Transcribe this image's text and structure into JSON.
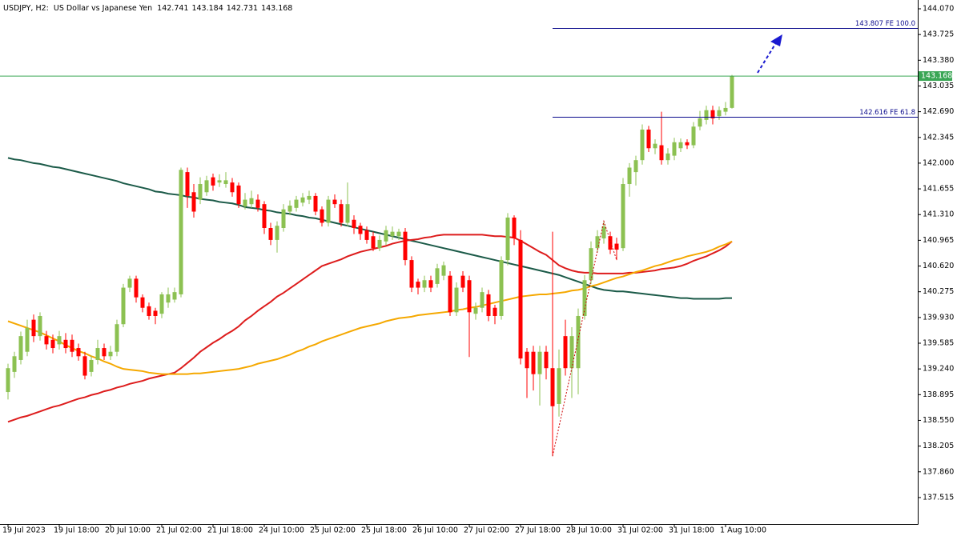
{
  "chart_data": {
    "type": "candlestick",
    "symbol": "USDJPY, H2:",
    "description": "US Dollar vs Japanese Yen",
    "up_color": "#8cc152",
    "down_color": "#ff0000",
    "price_line_color": "#3aa655",
    "level_color": "#0a0a8c",
    "categories": [
      "19 Jul 2023",
      null,
      null,
      null,
      null,
      null,
      null,
      null,
      "19 Jul 18:00",
      null,
      null,
      null,
      null,
      null,
      null,
      null,
      "20 Jul 10:00",
      null,
      null,
      null,
      null,
      null,
      null,
      null,
      "21 Jul 02:00",
      null,
      null,
      null,
      null,
      null,
      null,
      null,
      "21 Jul 18:00",
      null,
      null,
      null,
      null,
      null,
      null,
      null,
      "24 Jul 10:00",
      null,
      null,
      null,
      null,
      null,
      null,
      null,
      "25 Jul 02:00",
      null,
      null,
      null,
      null,
      null,
      null,
      null,
      "25 Jul 18:00",
      null,
      null,
      null,
      null,
      null,
      null,
      null,
      "26 Jul 10:00",
      null,
      null,
      null,
      null,
      null,
      null,
      null,
      "27 Jul 02:00",
      null,
      null,
      null,
      null,
      null,
      null,
      null,
      "27 Jul 18:00",
      null,
      null,
      null,
      null,
      null,
      null,
      null,
      "28 Jul 10:00",
      null,
      null,
      null,
      null,
      null,
      null,
      null,
      "31 Jul 02:00",
      null,
      null,
      null,
      null,
      null,
      null,
      null,
      "31 Jul 18:00",
      null,
      null,
      null,
      null,
      null,
      null,
      null,
      "1 Aug 10:00",
      null
    ],
    "open": [
      138.93,
      139.2,
      139.36,
      139.47,
      139.9,
      139.68,
      139.68,
      139.63,
      139.57,
      139.63,
      139.63,
      139.52,
      139.41,
      139.2,
      139.36,
      139.52,
      139.41,
      139.47,
      139.84,
      140.33,
      140.45,
      140.2,
      140.08,
      140.02,
      139.98,
      140.13,
      140.17,
      140.24,
      141.88,
      141.61,
      141.51,
      141.61,
      141.81,
      141.74,
      141.72,
      141.74,
      141.7,
      141.42,
      141.45,
      141.51,
      141.45,
      141.13,
      140.97,
      141.13,
      141.35,
      141.4,
      141.47,
      141.51,
      141.56,
      141.38,
      141.2,
      141.51,
      141.45,
      141.2,
      141.24,
      141.16,
      141.1,
      141.02,
      140.86,
      140.95,
      141.02,
      141.02,
      141.08,
      140.7,
      140.41,
      140.33,
      140.43,
      140.38,
      140.49,
      140.49,
      140.0,
      140.49,
      140.43,
      139.98,
      140.06,
      140.24,
      140.06,
      139.95,
      140.7,
      141.27,
      140.97,
      139.47,
      139.47,
      139.17,
      139.47,
      139.25,
      138.77,
      139.68,
      139.25,
      139.25,
      139.95,
      140.43,
      140.86,
      140.99,
      141.02,
      140.92,
      140.86,
      141.72,
      141.88,
      142.04,
      142.45,
      142.2,
      142.24,
      142.04,
      142.1,
      142.2,
      142.28,
      142.24,
      142.49,
      142.58,
      142.71,
      142.63,
      142.69,
      142.741
    ],
    "high": [
      139.31,
      139.47,
      139.74,
      139.9,
      139.97,
      140.0,
      139.75,
      139.7,
      139.75,
      139.72,
      139.7,
      139.58,
      139.47,
      139.42,
      139.63,
      139.58,
      139.55,
      139.9,
      140.38,
      140.49,
      140.49,
      140.24,
      140.13,
      140.06,
      140.27,
      140.33,
      140.33,
      141.94,
      141.94,
      141.72,
      141.81,
      141.83,
      141.86,
      141.85,
      141.88,
      141.8,
      141.74,
      141.6,
      141.63,
      141.58,
      141.49,
      141.2,
      141.22,
      141.45,
      141.5,
      141.56,
      141.6,
      141.63,
      141.6,
      141.42,
      141.56,
      141.58,
      141.51,
      141.74,
      141.3,
      141.2,
      141.15,
      141.08,
      141.03,
      141.16,
      141.15,
      141.12,
      141.13,
      140.75,
      140.45,
      140.49,
      140.49,
      140.65,
      140.68,
      140.55,
      140.4,
      140.55,
      140.49,
      140.13,
      140.33,
      140.3,
      140.1,
      140.75,
      141.33,
      141.3,
      141.1,
      139.52,
      139.55,
      139.55,
      139.55,
      141.08,
      139.5,
      139.9,
      139.8,
      140.05,
      140.5,
      140.95,
      141.1,
      141.22,
      141.08,
      141.0,
      141.8,
      142.0,
      142.1,
      142.52,
      142.5,
      142.32,
      142.69,
      142.2,
      142.34,
      142.33,
      142.32,
      142.55,
      142.7,
      142.77,
      142.77,
      142.76,
      142.82,
      143.184
    ],
    "low": [
      138.83,
      139.12,
      139.3,
      139.41,
      139.6,
      139.62,
      139.5,
      139.45,
      139.5,
      139.45,
      139.4,
      139.35,
      139.1,
      139.14,
      139.3,
      139.36,
      139.36,
      139.41,
      139.8,
      140.27,
      140.13,
      140.0,
      139.9,
      139.84,
      139.92,
      140.06,
      140.13,
      140.2,
      141.4,
      141.27,
      141.45,
      141.56,
      141.63,
      141.68,
      141.67,
      141.55,
      141.4,
      141.38,
      141.4,
      141.35,
      141.05,
      140.9,
      140.8,
      141.08,
      141.3,
      141.35,
      141.42,
      141.45,
      141.3,
      141.15,
      141.15,
      141.4,
      141.15,
      141.15,
      141.05,
      140.97,
      140.92,
      140.82,
      140.82,
      140.9,
      140.97,
      140.97,
      140.63,
      140.27,
      140.24,
      140.27,
      140.27,
      140.33,
      140.43,
      139.95,
      139.95,
      140.27,
      139.4,
      139.9,
      140.0,
      139.88,
      139.84,
      139.9,
      140.63,
      140.9,
      139.3,
      138.85,
      138.95,
      138.75,
      139.1,
      138.07,
      138.6,
      139.15,
      138.85,
      138.9,
      139.9,
      140.38,
      140.8,
      140.92,
      140.78,
      140.7,
      140.82,
      141.55,
      141.7,
      141.98,
      142.15,
      142.12,
      141.98,
      141.98,
      142.04,
      142.15,
      142.19,
      142.2,
      142.44,
      142.52,
      142.52,
      142.58,
      142.64,
      142.731
    ],
    "close": [
      139.25,
      139.41,
      139.68,
      139.79,
      139.68,
      139.95,
      139.57,
      139.52,
      139.68,
      139.52,
      139.47,
      139.41,
      139.15,
      139.36,
      139.52,
      139.41,
      139.47,
      139.84,
      140.33,
      140.45,
      140.2,
      140.06,
      139.95,
      139.95,
      140.24,
      140.24,
      140.27,
      141.91,
      141.56,
      141.35,
      141.72,
      141.77,
      141.7,
      141.77,
      141.77,
      141.61,
      141.45,
      141.51,
      141.53,
      141.4,
      141.13,
      140.97,
      141.16,
      141.38,
      141.43,
      141.51,
      141.54,
      141.56,
      141.35,
      141.2,
      141.51,
      141.45,
      141.2,
      141.45,
      141.13,
      141.05,
      140.97,
      140.86,
      140.97,
      141.1,
      141.08,
      141.08,
      140.7,
      140.33,
      140.33,
      140.43,
      140.33,
      140.59,
      140.63,
      140.0,
      140.33,
      140.33,
      140.0,
      140.06,
      140.27,
      139.95,
      139.95,
      140.7,
      141.27,
      140.99,
      139.38,
      139.25,
      139.17,
      139.47,
      139.25,
      138.74,
      139.25,
      139.25,
      139.68,
      139.95,
      140.43,
      140.86,
      141.02,
      141.15,
      140.84,
      140.84,
      141.72,
      141.94,
      142.04,
      142.45,
      142.2,
      142.26,
      142.04,
      142.13,
      142.28,
      142.28,
      142.24,
      142.49,
      142.6,
      142.71,
      142.6,
      142.71,
      142.74,
      143.168
    ],
    "overlays": [
      {
        "color": "#1b5a48",
        "values": [
          142.07,
          142.05,
          142.04,
          142.02,
          142.0,
          141.99,
          141.97,
          141.95,
          141.94,
          141.92,
          141.9,
          141.88,
          141.86,
          141.84,
          141.82,
          141.8,
          141.78,
          141.76,
          141.73,
          141.71,
          141.69,
          141.67,
          141.65,
          141.62,
          141.61,
          141.59,
          141.58,
          141.57,
          141.55,
          141.54,
          141.52,
          141.51,
          141.5,
          141.48,
          141.47,
          141.46,
          141.44,
          141.41,
          141.4,
          141.39,
          141.37,
          141.36,
          141.34,
          141.33,
          141.32,
          141.3,
          141.29,
          141.27,
          141.26,
          141.24,
          141.22,
          141.2,
          141.18,
          141.16,
          141.14,
          141.12,
          141.1,
          141.08,
          141.06,
          141.04,
          141.02,
          141.0,
          140.98,
          140.96,
          140.94,
          140.92,
          140.9,
          140.88,
          140.86,
          140.84,
          140.82,
          140.8,
          140.78,
          140.76,
          140.74,
          140.72,
          140.7,
          140.68,
          140.66,
          140.64,
          140.62,
          140.6,
          140.58,
          140.56,
          140.54,
          140.52,
          140.5,
          140.47,
          140.44,
          140.41,
          140.38,
          140.35,
          140.32,
          140.3,
          140.29,
          140.28,
          140.28,
          140.27,
          140.26,
          140.25,
          140.24,
          140.23,
          140.22,
          140.21,
          140.2,
          140.19,
          140.19,
          140.18,
          140.18,
          140.18,
          140.18,
          140.18,
          140.19,
          140.19
        ]
      },
      {
        "color": "#dd1c1c",
        "values": [
          138.53,
          138.56,
          138.59,
          138.61,
          138.64,
          138.67,
          138.7,
          138.73,
          138.75,
          138.78,
          138.81,
          138.84,
          138.86,
          138.89,
          138.91,
          138.94,
          138.96,
          138.99,
          139.01,
          139.04,
          139.06,
          139.08,
          139.11,
          139.13,
          139.15,
          139.17,
          139.19,
          139.25,
          139.32,
          139.39,
          139.47,
          139.53,
          139.59,
          139.64,
          139.7,
          139.75,
          139.81,
          139.89,
          139.95,
          140.02,
          140.08,
          140.14,
          140.21,
          140.26,
          140.32,
          140.38,
          140.44,
          140.5,
          140.56,
          140.62,
          140.65,
          140.68,
          140.71,
          140.75,
          140.78,
          140.81,
          140.83,
          140.85,
          140.87,
          140.89,
          140.92,
          140.94,
          140.96,
          140.97,
          140.98,
          141.0,
          141.01,
          141.03,
          141.04,
          141.04,
          141.04,
          141.04,
          141.04,
          141.04,
          141.04,
          141.03,
          141.02,
          141.02,
          141.01,
          141.0,
          140.96,
          140.91,
          140.86,
          140.81,
          140.77,
          140.7,
          140.63,
          140.59,
          140.56,
          140.54,
          140.53,
          140.53,
          140.52,
          140.52,
          140.52,
          140.52,
          140.52,
          140.53,
          140.53,
          140.54,
          140.55,
          140.56,
          140.58,
          140.59,
          140.6,
          140.62,
          140.65,
          140.69,
          140.72,
          140.75,
          140.79,
          140.83,
          140.88,
          140.95
        ]
      },
      {
        "color": "#f5a800",
        "values": [
          139.88,
          139.85,
          139.82,
          139.79,
          139.76,
          139.73,
          139.69,
          139.65,
          139.61,
          139.56,
          139.52,
          139.48,
          139.45,
          139.41,
          139.38,
          139.34,
          139.31,
          139.27,
          139.24,
          139.23,
          139.22,
          139.21,
          139.19,
          139.18,
          139.17,
          139.17,
          139.17,
          139.17,
          139.17,
          139.18,
          139.18,
          139.19,
          139.2,
          139.21,
          139.22,
          139.23,
          139.24,
          139.26,
          139.28,
          139.31,
          139.33,
          139.35,
          139.37,
          139.4,
          139.43,
          139.47,
          139.5,
          139.54,
          139.57,
          139.61,
          139.64,
          139.67,
          139.7,
          139.73,
          139.76,
          139.79,
          139.81,
          139.83,
          139.85,
          139.88,
          139.9,
          139.92,
          139.93,
          139.94,
          139.96,
          139.97,
          139.98,
          139.99,
          140.0,
          140.01,
          140.03,
          140.04,
          140.06,
          140.07,
          140.09,
          140.11,
          140.13,
          140.15,
          140.17,
          140.19,
          140.21,
          140.22,
          140.23,
          140.24,
          140.24,
          140.25,
          140.26,
          140.27,
          140.29,
          140.3,
          140.32,
          140.35,
          140.37,
          140.4,
          140.43,
          140.46,
          140.48,
          140.51,
          140.54,
          140.56,
          140.59,
          140.62,
          140.64,
          140.67,
          140.7,
          140.72,
          140.75,
          140.77,
          140.79,
          140.81,
          140.84,
          140.88,
          140.91,
          140.95
        ]
      }
    ],
    "levels": [
      {
        "value": 143.807,
        "label": "143.807 FE 100.0"
      },
      {
        "value": 142.616,
        "label": "142.616 FE 61.8"
      }
    ],
    "ylim": [
      137.16,
      144.188
    ],
    "yticks": [
      {
        "value": 144.07,
        "label": "144.070"
      },
      {
        "value": 143.725,
        "label": "143.725"
      },
      {
        "value": 143.38,
        "label": "143.380"
      },
      {
        "value": 143.035,
        "label": "143.035"
      },
      {
        "value": 142.69,
        "label": "142.690"
      },
      {
        "value": 142.345,
        "label": "142.345"
      },
      {
        "value": 142,
        "label": "142.000"
      },
      {
        "value": 141.655,
        "label": "141.655"
      },
      {
        "value": 141.31,
        "label": "141.310"
      },
      {
        "value": 140.965,
        "label": "140.965"
      },
      {
        "value": 140.62,
        "label": "140.620"
      },
      {
        "value": 140.275,
        "label": "140.275"
      },
      {
        "value": 139.93,
        "label": "139.930"
      },
      {
        "value": 139.585,
        "label": "139.585"
      },
      {
        "value": 139.24,
        "label": "139.240"
      },
      {
        "value": 138.895,
        "label": "138.895"
      },
      {
        "value": 138.55,
        "label": "138.550"
      },
      {
        "value": 138.205,
        "label": "138.205"
      },
      {
        "value": 137.86,
        "label": "137.860"
      },
      {
        "value": 137.515,
        "label": "137.515"
      }
    ]
  }
}
